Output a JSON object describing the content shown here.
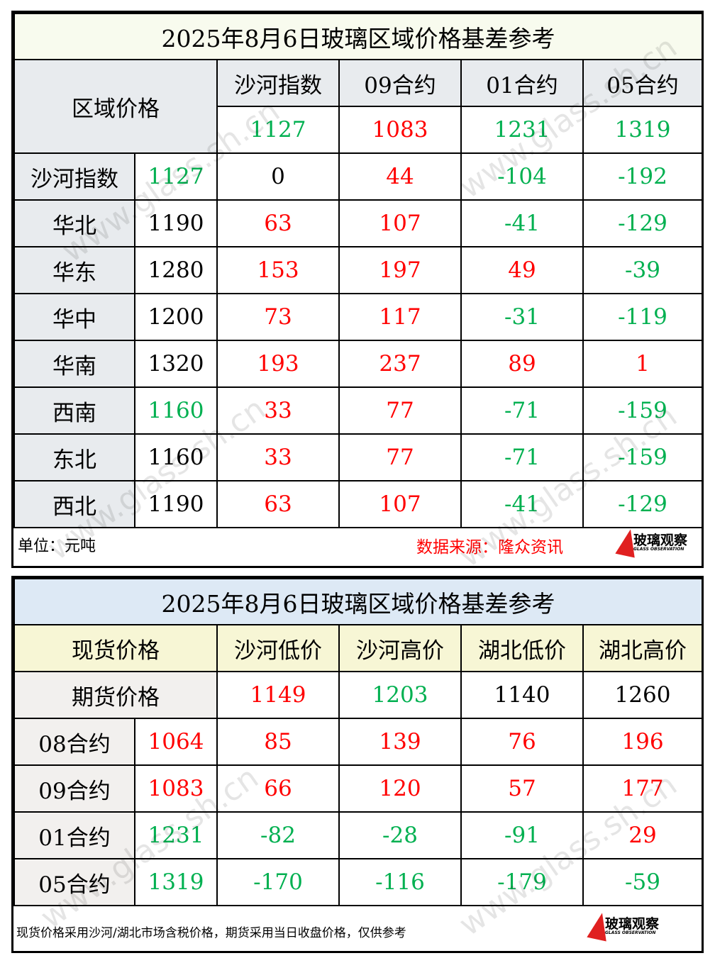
{
  "table1": {
    "title": "2025年8月6日玻璃区域价格基差参考",
    "corner_label": "区域价格",
    "columns": [
      {
        "label": "沙河指数",
        "price": "1127",
        "color": "green"
      },
      {
        "label": "09合约",
        "price": "1083",
        "color": "red"
      },
      {
        "label": "01合约",
        "price": "1231",
        "color": "green"
      },
      {
        "label": "05合约",
        "price": "1319",
        "color": "green"
      }
    ],
    "rows": [
      {
        "label": "沙河指数",
        "price": "1127",
        "price_color": "green",
        "values": [
          "0",
          "44",
          "-104",
          "-192"
        ],
        "colors": [
          "black",
          "red",
          "green",
          "green"
        ]
      },
      {
        "label": "华北",
        "price": "1190",
        "price_color": "black",
        "values": [
          "63",
          "107",
          "-41",
          "-129"
        ],
        "colors": [
          "red",
          "red",
          "green",
          "green"
        ]
      },
      {
        "label": "华东",
        "price": "1280",
        "price_color": "black",
        "values": [
          "153",
          "197",
          "49",
          "-39"
        ],
        "colors": [
          "red",
          "red",
          "red",
          "green"
        ]
      },
      {
        "label": "华中",
        "price": "1200",
        "price_color": "black",
        "values": [
          "73",
          "117",
          "-31",
          "-119"
        ],
        "colors": [
          "red",
          "red",
          "green",
          "green"
        ]
      },
      {
        "label": "华南",
        "price": "1320",
        "price_color": "black",
        "values": [
          "193",
          "237",
          "89",
          "1"
        ],
        "colors": [
          "red",
          "red",
          "red",
          "red"
        ]
      },
      {
        "label": "西南",
        "price": "1160",
        "price_color": "green",
        "values": [
          "33",
          "77",
          "-71",
          "-159"
        ],
        "colors": [
          "red",
          "red",
          "green",
          "green"
        ]
      },
      {
        "label": "东北",
        "price": "1160",
        "price_color": "black",
        "values": [
          "33",
          "77",
          "-71",
          "-159"
        ],
        "colors": [
          "red",
          "red",
          "green",
          "green"
        ]
      },
      {
        "label": "西北",
        "price": "1190",
        "price_color": "black",
        "values": [
          "63",
          "107",
          "-41",
          "-129"
        ],
        "colors": [
          "red",
          "red",
          "green",
          "green"
        ]
      }
    ],
    "footer": {
      "unit": "单位：元吨",
      "source": "数据来源：隆众资讯"
    }
  },
  "table2": {
    "title": "2025年8月6日玻璃区域价格基差参考",
    "spot_label": "现货价格",
    "futures_label": "期货价格",
    "columns": [
      {
        "label": "沙河低价",
        "price": "1149",
        "color": "red"
      },
      {
        "label": "沙河高价",
        "price": "1203",
        "color": "green"
      },
      {
        "label": "湖北低价",
        "price": "1140",
        "color": "black"
      },
      {
        "label": "湖北高价",
        "price": "1260",
        "color": "black"
      }
    ],
    "rows": [
      {
        "label": "08合约",
        "price": "1064",
        "price_color": "red",
        "values": [
          "85",
          "139",
          "76",
          "196"
        ],
        "colors": [
          "red",
          "red",
          "red",
          "red"
        ]
      },
      {
        "label": "09合约",
        "price": "1083",
        "price_color": "red",
        "values": [
          "66",
          "120",
          "57",
          "177"
        ],
        "colors": [
          "red",
          "red",
          "red",
          "red"
        ]
      },
      {
        "label": "01合约",
        "price": "1231",
        "price_color": "green",
        "values": [
          "-82",
          "-28",
          "-91",
          "29"
        ],
        "colors": [
          "green",
          "green",
          "green",
          "red"
        ]
      },
      {
        "label": "05合约",
        "price": "1319",
        "price_color": "green",
        "values": [
          "-170",
          "-116",
          "-179",
          "-59"
        ],
        "colors": [
          "green",
          "green",
          "green",
          "green"
        ]
      }
    ],
    "footer": {
      "note": "现货价格采用沙河/湖北市场含税价格，期货采用当日收盘价格，仅供参考"
    }
  },
  "logo": {
    "cn": "玻璃观察",
    "en": "GLASS OBSERVATION"
  },
  "watermark": "www.glass.sh.cn",
  "colors": {
    "red": "#ff0000",
    "green": "#00b050",
    "header_gray": "#e8ebee",
    "title1_bg": "#f8fbee",
    "title2_bg": "#dde9f5",
    "header2_bg": "#f7f6d5"
  }
}
